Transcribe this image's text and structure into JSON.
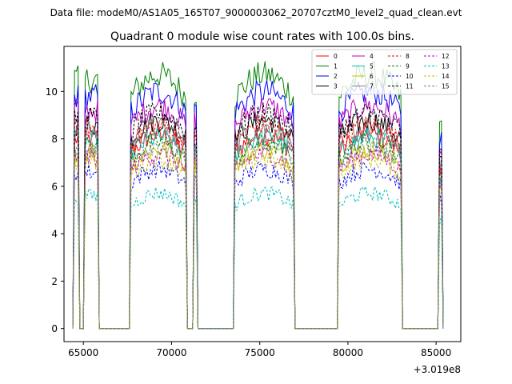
{
  "chart_data": {
    "type": "line",
    "suptitle": "Data file: modeM0/AS1A05_165T07_9000003062_20707cztM0_level2_quad_clean.evt",
    "title": "Quadrant 0 module wise count rates with 100.0s bins.",
    "xlabel": "",
    "ylabel": "",
    "x_offset_label": "+3.019e8",
    "xlim": [
      63900,
      86400
    ],
    "ylim": [
      -0.55,
      11.9
    ],
    "xticks": [
      65000,
      70000,
      75000,
      80000,
      85000
    ],
    "xtick_labels": [
      "65000",
      "70000",
      "75000",
      "80000",
      "85000"
    ],
    "yticks": [
      0,
      2,
      4,
      6,
      8,
      10
    ],
    "ytick_labels": [
      "0",
      "2",
      "4",
      "6",
      "8",
      "10"
    ],
    "grid": false,
    "legend_position": "top-right",
    "active_segments": [
      [
        64450,
        64780
      ],
      [
        65050,
        65830
      ],
      [
        67670,
        70810
      ],
      [
        71300,
        71420
      ],
      [
        73570,
        76940
      ],
      [
        79440,
        83020
      ],
      [
        85130,
        85380
      ]
    ],
    "series": [
      {
        "name": "0",
        "color": "#ff0000",
        "dash": "solid",
        "level": 8.0
      },
      {
        "name": "1",
        "color": "#008000",
        "dash": "solid",
        "level": 10.5
      },
      {
        "name": "2",
        "color": "#0000ff",
        "dash": "solid",
        "level": 9.8
      },
      {
        "name": "3",
        "color": "#000000",
        "dash": "solid",
        "level": 8.6
      },
      {
        "name": "4",
        "color": "#bf00bf",
        "dash": "solid",
        "level": 9.2
      },
      {
        "name": "5",
        "color": "#00bfbf",
        "dash": "solid",
        "level": 7.9
      },
      {
        "name": "6",
        "color": "#bfbf00",
        "dash": "solid",
        "level": 7.4
      },
      {
        "name": "7",
        "color": "#808080",
        "dash": "solid",
        "level": 8.3
      },
      {
        "name": "8",
        "color": "#ff0000",
        "dash": "dashed",
        "level": 8.4
      },
      {
        "name": "9",
        "color": "#008000",
        "dash": "dashed",
        "level": 7.7
      },
      {
        "name": "10",
        "color": "#0000ff",
        "dash": "dashed",
        "level": 6.6
      },
      {
        "name": "11",
        "color": "#000000",
        "dash": "dashed",
        "level": 8.9
      },
      {
        "name": "12",
        "color": "#bf00bf",
        "dash": "dashed",
        "level": 7.2
      },
      {
        "name": "13",
        "color": "#00bfbf",
        "dash": "dashed",
        "level": 5.6
      },
      {
        "name": "14",
        "color": "#bfbf00",
        "dash": "dashed",
        "level": 7.0
      },
      {
        "name": "15",
        "color": "#808080",
        "dash": "dashed",
        "level": 7.6
      }
    ]
  }
}
